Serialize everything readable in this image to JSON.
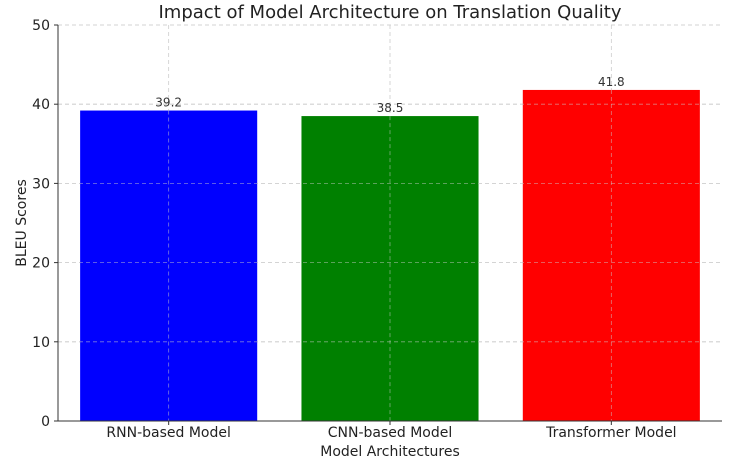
{
  "chart_data": {
    "type": "bar",
    "title": "Impact of Model Architecture on Translation Quality",
    "xlabel": "Model Architectures",
    "ylabel": "BLEU Scores",
    "categories": [
      "RNN-based Model",
      "CNN-based Model",
      "Transformer Model"
    ],
    "values": [
      39.2,
      38.5,
      41.8
    ],
    "value_labels": [
      "39.2",
      "38.5",
      "41.8"
    ],
    "colors": [
      "#0000ff",
      "#008000",
      "#ff0000"
    ],
    "ylim": [
      0,
      50
    ],
    "yticks": [
      0,
      10,
      20,
      30,
      40,
      50
    ],
    "grid": true
  }
}
